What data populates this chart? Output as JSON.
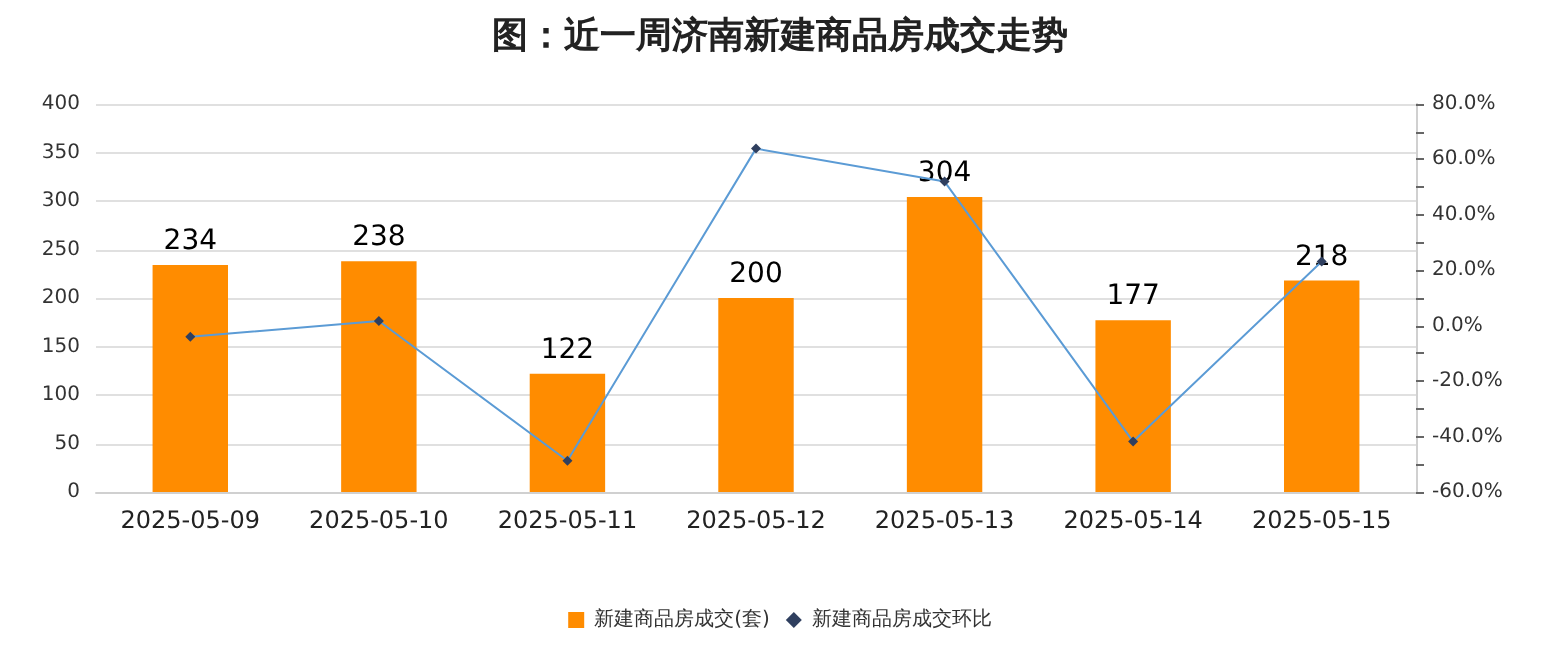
{
  "chart_data": {
    "type": "bar",
    "title": "图：近一周济南新建商品房成交走势",
    "categories": [
      "2025-05-09",
      "2025-05-10",
      "2025-05-11",
      "2025-05-12",
      "2025-05-13",
      "2025-05-14",
      "2025-05-15"
    ],
    "series": [
      {
        "name": "新建商品房成交(套)",
        "color": "#ff8c00",
        "values": [
          234,
          238,
          122,
          200,
          304,
          177,
          218
        ],
        "value_labels": [
          "234",
          "238",
          "122",
          "200",
          "304",
          "177",
          "218"
        ]
      },
      {
        "name": "新建商品房成交环比",
        "type": "line",
        "axis": "y2",
        "color": "#5b9bd5",
        "values": [
          -4,
          1.7,
          -48.7,
          63.9,
          52,
          -41.8,
          23.2
        ]
      }
    ],
    "ylim": [
      0,
      400
    ],
    "yticks": [
      0,
      50,
      100,
      150,
      200,
      250,
      300,
      350,
      400
    ],
    "y2lim": [
      -60,
      80
    ],
    "y2ticks": [
      {
        "value": -60,
        "label": "-60.0%"
      },
      {
        "value": -50,
        "label": null
      },
      {
        "value": -40,
        "label": "-40.0%"
      },
      {
        "value": -30,
        "label": null
      },
      {
        "value": -20,
        "label": "-20.0%"
      },
      {
        "value": -10,
        "label": null
      },
      {
        "value": 0,
        "label": "0.0%"
      },
      {
        "value": 10,
        "label": null
      },
      {
        "value": 20,
        "label": "20.0%"
      },
      {
        "value": 30,
        "label": null
      },
      {
        "value": 40,
        "label": "40.0%"
      },
      {
        "value": 50,
        "label": null
      },
      {
        "value": 60,
        "label": "60.0%"
      },
      {
        "value": 70,
        "label": null
      },
      {
        "value": 80,
        "label": "80.0%"
      }
    ],
    "grid": "y",
    "legend": "bottom",
    "marker": "diamond",
    "line_style": "solid"
  }
}
